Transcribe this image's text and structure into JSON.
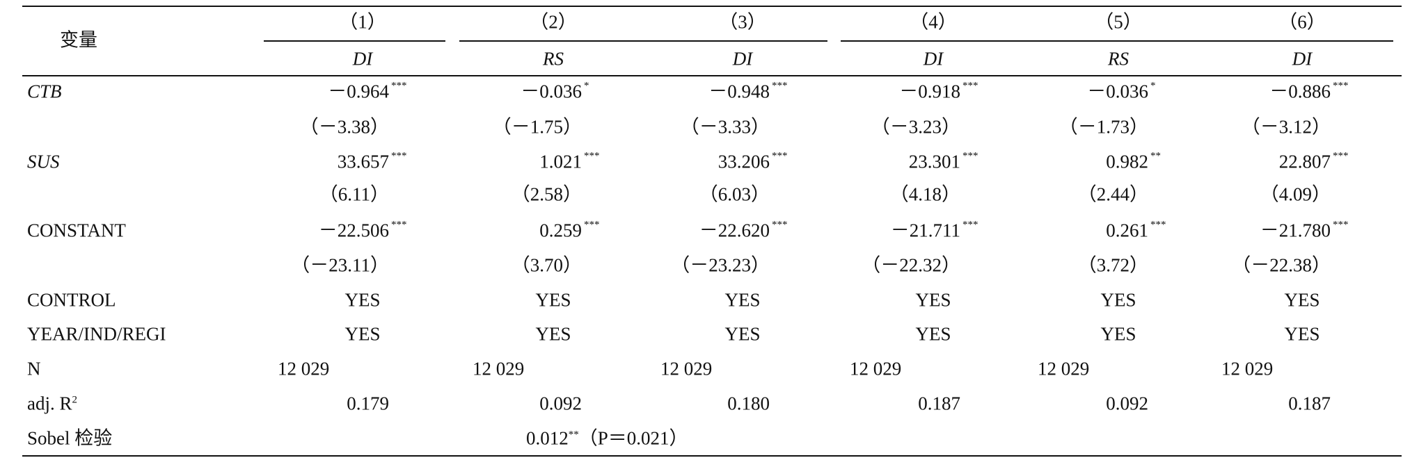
{
  "header": {
    "variable_label": "变量",
    "columns": [
      {
        "number": "（1）",
        "dep": "DI"
      },
      {
        "number": "（2）",
        "dep": "RS"
      },
      {
        "number": "（3）",
        "dep": "DI"
      },
      {
        "number": "（4）",
        "dep": "DI"
      },
      {
        "number": "（5）",
        "dep": "RS"
      },
      {
        "number": "（6）",
        "dep": "DI"
      }
    ]
  },
  "rows": [
    {
      "label": "CTB",
      "italic": true,
      "cells": [
        {
          "text": "－0.964",
          "sup": "***"
        },
        {
          "text": "－0.036",
          "sup": "*"
        },
        {
          "text": "－0.948",
          "sup": "***"
        },
        {
          "text": "－0.918",
          "sup": "***"
        },
        {
          "text": "－0.036",
          "sup": "*"
        },
        {
          "text": "－0.886",
          "sup": "***"
        }
      ]
    },
    {
      "label": null,
      "cells": [
        {
          "text": "（－3.38）"
        },
        {
          "text": "（－1.75）"
        },
        {
          "text": "（－3.33）"
        },
        {
          "text": "（－3.23）"
        },
        {
          "text": "（－1.73）"
        },
        {
          "text": "（－3.12）"
        }
      ]
    },
    {
      "label": "SUS",
      "italic": true,
      "cells": [
        {
          "text": "33.657",
          "sup": "***"
        },
        {
          "text": "1.021",
          "sup": "***"
        },
        {
          "text": "33.206",
          "sup": "***"
        },
        {
          "text": "23.301",
          "sup": "***"
        },
        {
          "text": "0.982",
          "sup": "**"
        },
        {
          "text": "22.807",
          "sup": "***"
        }
      ]
    },
    {
      "label": null,
      "cells": [
        {
          "text": "（6.11）"
        },
        {
          "text": "（2.58）"
        },
        {
          "text": "（6.03）"
        },
        {
          "text": "（4.18）"
        },
        {
          "text": "（2.44）"
        },
        {
          "text": "（4.09）"
        }
      ]
    },
    {
      "label": "CONSTANT",
      "cells": [
        {
          "text": "－22.506",
          "sup": "***"
        },
        {
          "text": "0.259",
          "sup": "***"
        },
        {
          "text": "－22.620",
          "sup": "***"
        },
        {
          "text": "－21.711",
          "sup": "***"
        },
        {
          "text": "0.261",
          "sup": "***"
        },
        {
          "text": "－21.780",
          "sup": "***"
        }
      ]
    },
    {
      "label": null,
      "cells": [
        {
          "text": "（－23.11）"
        },
        {
          "text": "（3.70）"
        },
        {
          "text": "（－23.23）"
        },
        {
          "text": "（－22.32）"
        },
        {
          "text": "（3.72）"
        },
        {
          "text": "（－22.38）"
        }
      ]
    },
    {
      "label": "CONTROL",
      "cells": [
        {
          "text": "YES"
        },
        {
          "text": "YES"
        },
        {
          "text": "YES"
        },
        {
          "text": "YES"
        },
        {
          "text": "YES"
        },
        {
          "text": "YES"
        }
      ]
    },
    {
      "label": "YEAR/IND/REGI",
      "cells": [
        {
          "text": "YES"
        },
        {
          "text": "YES"
        },
        {
          "text": "YES"
        },
        {
          "text": "YES"
        },
        {
          "text": "YES"
        },
        {
          "text": "YES"
        }
      ]
    },
    {
      "label": "N",
      "cells": [
        {
          "text": "12 029"
        },
        {
          "text": "12 029"
        },
        {
          "text": "12 029"
        },
        {
          "text": "12 029"
        },
        {
          "text": "12 029"
        },
        {
          "text": "12 029"
        }
      ]
    },
    {
      "label": "adj. R",
      "label_sup": "2",
      "cells": [
        {
          "text": "0.179"
        },
        {
          "text": "0.092"
        },
        {
          "text": "0.180"
        },
        {
          "text": "0.187"
        },
        {
          "text": "0.092"
        },
        {
          "text": "0.187"
        }
      ]
    }
  ],
  "sobel": {
    "label": "Sobel 检验",
    "value": "0.012",
    "sup": "**",
    "note": "（P＝0.021）"
  }
}
